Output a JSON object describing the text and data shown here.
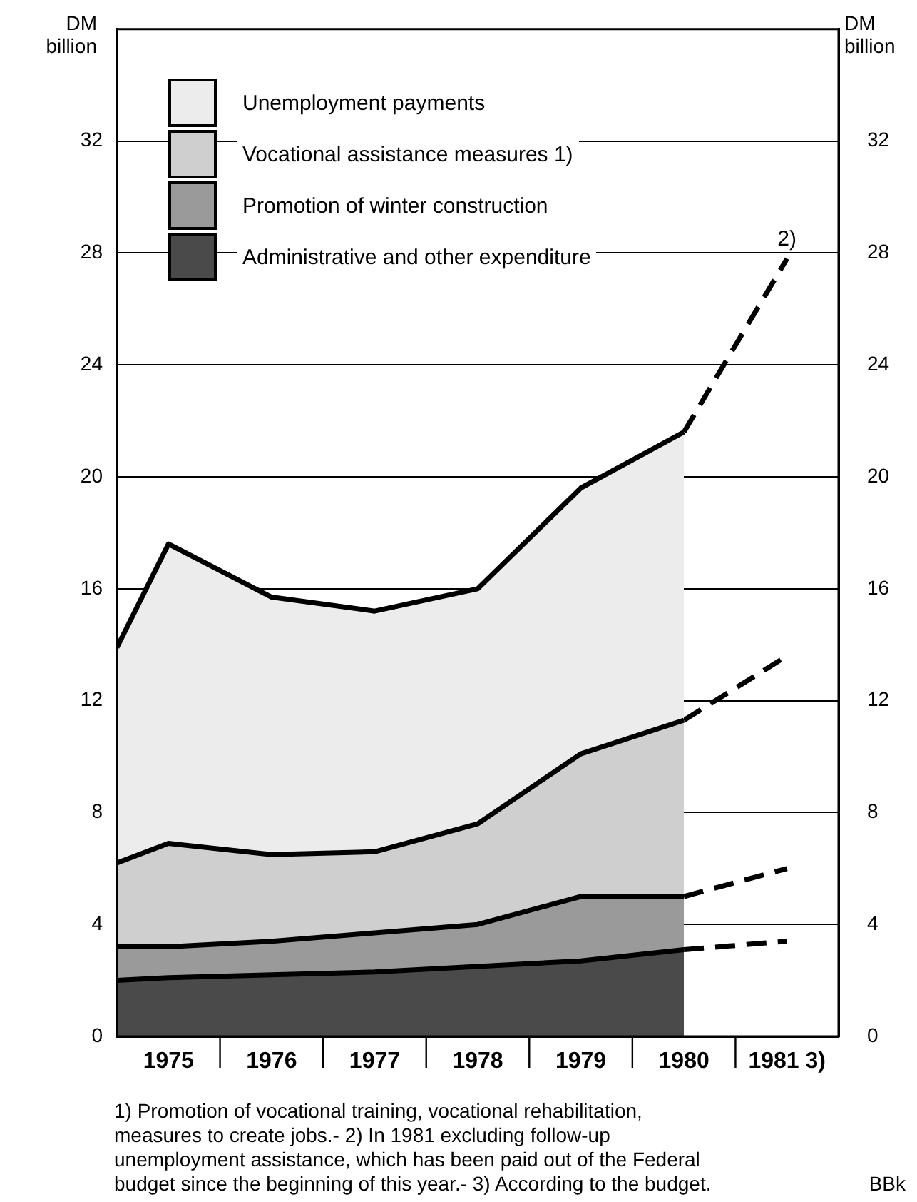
{
  "chart_data": {
    "type": "area",
    "stacked": true,
    "ylabel": "DM billion",
    "y2label": "DM billion",
    "x": [
      1974.5,
      1975,
      1976,
      1977,
      1978,
      1979,
      1980,
      1981
    ],
    "xlim": [
      1974.5,
      1981.5
    ],
    "xticks": [
      {
        "value": 1975,
        "label": "1975"
      },
      {
        "value": 1976,
        "label": "1976"
      },
      {
        "value": 1977,
        "label": "1977"
      },
      {
        "value": 1978,
        "label": "1978"
      },
      {
        "value": 1979,
        "label": "1979"
      },
      {
        "value": 1980,
        "label": "1980"
      },
      {
        "value": 1981,
        "label": "1981 3)"
      }
    ],
    "ylim": [
      0,
      36
    ],
    "yticks": [
      0,
      4,
      8,
      12,
      16,
      20,
      24,
      28,
      32
    ],
    "y2lim": [
      0,
      36
    ],
    "y2ticks": [
      0,
      4,
      8,
      12,
      16,
      20,
      24,
      28,
      32
    ],
    "grid": "y",
    "legend": "top left",
    "marker": "none",
    "series": [
      {
        "name": "Administrative and other expenditure",
        "color": "#4a4a4a",
        "values": [
          2.0,
          2.1,
          2.2,
          2.3,
          2.5,
          2.7,
          3.1,
          null
        ]
      },
      {
        "name": "Promotion of winter construction",
        "color": "#9a9a9a",
        "values": [
          1.2,
          1.1,
          1.2,
          1.4,
          1.5,
          2.3,
          1.9,
          null
        ]
      },
      {
        "name": "Vocational assistance measures 1)",
        "color": "#cfcfcf",
        "values": [
          3.0,
          3.7,
          3.1,
          2.9,
          3.6,
          5.1,
          6.3,
          null
        ]
      },
      {
        "name": "Unemployment payments",
        "color": "#ececec",
        "values": [
          7.7,
          10.7,
          9.2,
          8.6,
          8.4,
          9.5,
          10.3,
          null
        ]
      },
      {
        "type": "line",
        "line_style": "dashed",
        "color": "#000000",
        "values": [
          null,
          null,
          null,
          null,
          null,
          null,
          3.1,
          3.4
        ]
      },
      {
        "type": "line",
        "line_style": "dashed",
        "color": "#000000",
        "values": [
          null,
          null,
          null,
          null,
          null,
          null,
          5.0,
          6.0
        ]
      },
      {
        "type": "line",
        "line_style": "dashed",
        "color": "#000000",
        "values": [
          null,
          null,
          null,
          null,
          null,
          null,
          11.3,
          13.6
        ]
      },
      {
        "type": "line",
        "line_style": "dashed",
        "color": "#000000",
        "values": [
          null,
          null,
          null,
          null,
          null,
          null,
          21.6,
          27.8
        ]
      }
    ],
    "annotations": [
      "1) Promotion of vocational training, vocational rehabilitation, measures to create jobs.- 2) In 1981 excluding follow-up unemployment assistance, which has been paid out of the Federal budget since the beginning of this year.- 3) According to the budget.",
      {
        "text": "2)",
        "x": 1981,
        "y": 27.8
      },
      "BBk"
    ]
  }
}
